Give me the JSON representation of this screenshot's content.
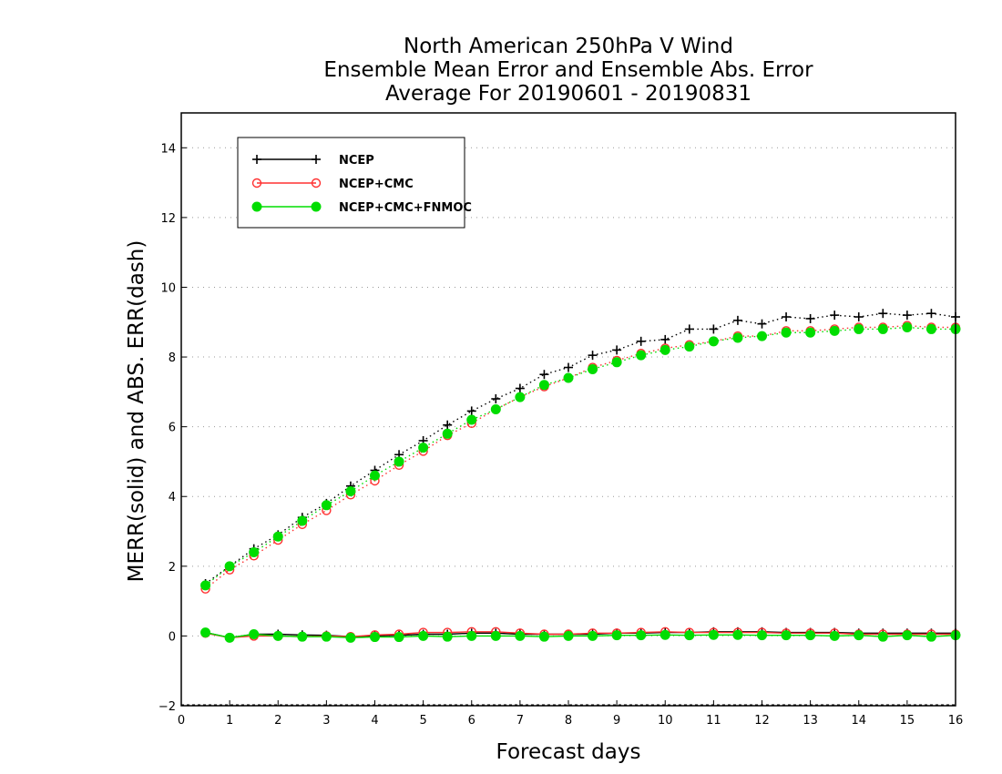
{
  "chart_data": {
    "type": "line",
    "title_lines": [
      "North American 250hPa V Wind",
      "Ensemble Mean Error and Ensemble Abs. Error",
      "Average For 20190601 - 20190831"
    ],
    "xlabel": "Forecast days",
    "ylabel": "MERR(solid) and ABS. ERR(dash)",
    "xlim": [
      0,
      16
    ],
    "ylim": [
      -2,
      15
    ],
    "xticks": [
      0,
      1,
      2,
      3,
      4,
      5,
      6,
      7,
      8,
      9,
      10,
      11,
      12,
      13,
      14,
      15,
      16
    ],
    "yticks": [
      -2,
      0,
      2,
      4,
      6,
      8,
      10,
      12,
      14
    ],
    "grid": "horizontal dotted",
    "legend_position": "top-left",
    "x": [
      0.5,
      1,
      1.5,
      2,
      2.5,
      3,
      3.5,
      4,
      4.5,
      5,
      5.5,
      6,
      6.5,
      7,
      7.5,
      8,
      8.5,
      9,
      9.5,
      10,
      10.5,
      11,
      11.5,
      12,
      12.5,
      13,
      13.5,
      14,
      14.5,
      15,
      15.5,
      16
    ],
    "series": [
      {
        "name": "NCEP",
        "color": "#000000",
        "marker": "plus",
        "abs_err": [
          1.5,
          2.0,
          2.5,
          2.9,
          3.4,
          3.8,
          4.3,
          4.75,
          5.2,
          5.6,
          6.05,
          6.45,
          6.8,
          7.1,
          7.5,
          7.7,
          8.05,
          8.2,
          8.45,
          8.5,
          8.8,
          8.8,
          9.05,
          8.95,
          9.15,
          9.1,
          9.2,
          9.15,
          9.25,
          9.2,
          9.25,
          9.15
        ],
        "mean_err": [
          0.1,
          -0.05,
          0.05,
          0.05,
          0.03,
          0.02,
          -0.02,
          0.0,
          0.02,
          0.05,
          0.05,
          0.08,
          0.08,
          0.05,
          0.05,
          0.05,
          0.05,
          0.08,
          0.08,
          0.1,
          0.1,
          0.12,
          0.12,
          0.12,
          0.1,
          0.1,
          0.1,
          0.08,
          0.08,
          0.08,
          0.08,
          0.08
        ]
      },
      {
        "name": "NCEP+CMC",
        "color": "#ff3030",
        "marker": "open-circle",
        "abs_err": [
          1.35,
          1.9,
          2.3,
          2.75,
          3.2,
          3.6,
          4.05,
          4.45,
          4.9,
          5.3,
          5.75,
          6.1,
          6.5,
          6.85,
          7.15,
          7.4,
          7.7,
          7.9,
          8.1,
          8.25,
          8.35,
          8.45,
          8.6,
          8.6,
          8.75,
          8.75,
          8.8,
          8.85,
          8.85,
          8.9,
          8.85,
          8.85
        ],
        "mean_err": [
          0.08,
          -0.05,
          0.0,
          0.0,
          -0.02,
          0.0,
          -0.02,
          0.03,
          0.05,
          0.1,
          0.1,
          0.12,
          0.12,
          0.08,
          0.05,
          0.05,
          0.08,
          0.08,
          0.1,
          0.12,
          0.1,
          0.1,
          0.1,
          0.1,
          0.08,
          0.08,
          0.08,
          0.05,
          0.05,
          0.05,
          0.05,
          0.05
        ]
      },
      {
        "name": "NCEP+CMC+FNMOC",
        "color": "#00dd00",
        "marker": "filled-circle",
        "abs_err": [
          1.45,
          2.0,
          2.4,
          2.85,
          3.3,
          3.75,
          4.15,
          4.6,
          5.0,
          5.4,
          5.8,
          6.2,
          6.5,
          6.85,
          7.2,
          7.4,
          7.65,
          7.85,
          8.05,
          8.2,
          8.3,
          8.45,
          8.55,
          8.6,
          8.7,
          8.7,
          8.75,
          8.8,
          8.8,
          8.85,
          8.8,
          8.8
        ],
        "mean_err": [
          0.1,
          -0.05,
          0.05,
          0.0,
          -0.02,
          -0.02,
          -0.05,
          -0.03,
          -0.03,
          0.0,
          -0.02,
          0.0,
          0.0,
          0.0,
          -0.02,
          0.0,
          0.0,
          0.02,
          0.02,
          0.03,
          0.02,
          0.03,
          0.03,
          0.02,
          0.02,
          0.02,
          0.0,
          0.02,
          -0.02,
          0.02,
          -0.02,
          0.02
        ]
      }
    ]
  }
}
